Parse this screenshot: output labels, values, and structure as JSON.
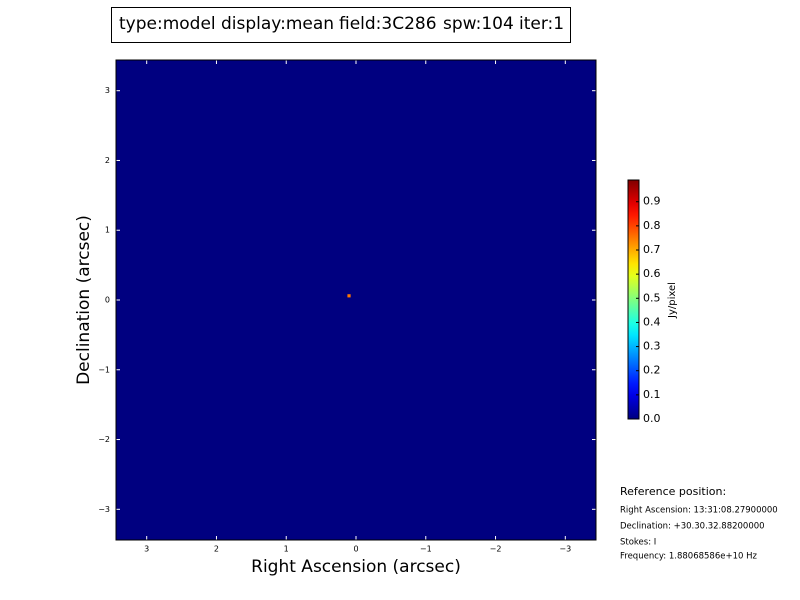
{
  "chart_data": {
    "type": "image",
    "title_parts": [
      {
        "text": "type:model",
        "color": "#000000"
      },
      {
        "text": "display:mean",
        "color": "#ff0000"
      },
      {
        "text": "field:3C286",
        "color": "#000000"
      },
      {
        "text": "spw:104",
        "color": "#000000"
      },
      {
        "text": "iter:1",
        "color": "#000000"
      }
    ],
    "x_label": "Right Ascension (arcsec)",
    "y_label": "Declination (arcsec)",
    "xlim": [
      3.44,
      -3.44
    ],
    "ylim": [
      -3.44,
      3.44
    ],
    "xticks": [
      3,
      2,
      1,
      0,
      {
        "value": -1,
        "label": "−1"
      },
      {
        "value": -2,
        "label": "−2"
      },
      {
        "value": -3,
        "label": "−3"
      }
    ],
    "yticks": [
      {
        "value": -3,
        "label": "−3"
      },
      {
        "value": -2,
        "label": "−2"
      },
      {
        "value": -1,
        "label": "−1"
      },
      0,
      1,
      2,
      3
    ],
    "colormap": "jet",
    "background_value": 0,
    "x": [
      0.1
    ],
    "y": [
      0.06
    ],
    "values": [
      0.75
    ],
    "clim": [
      0,
      0.99
    ],
    "colorbar_ticks": [
      {
        "value": 0,
        "label": "0.0"
      },
      0.1,
      0.2,
      0.3,
      0.4,
      0.5,
      0.6,
      0.7,
      0.8,
      0.9
    ],
    "colorbar_label": "Jy/pixel",
    "reference": {
      "title": "Reference position:",
      "lines": [
        "Right Ascension: 13:31:08.27900000",
        "Declination: +30.30.32.88200000",
        "Stokes: I",
        "Frequency: 1.88068586e+10 Hz"
      ]
    }
  }
}
